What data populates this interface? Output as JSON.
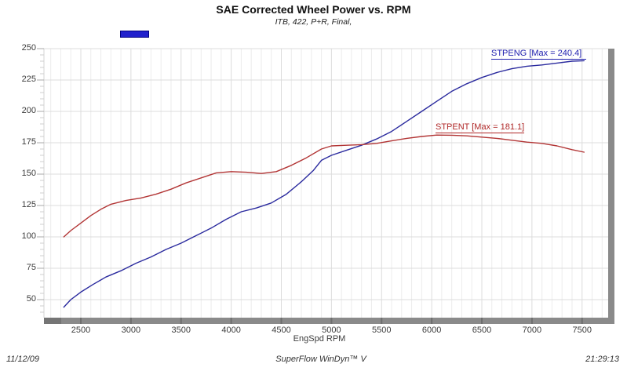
{
  "title": "SAE Corrected Wheel Power vs. RPM",
  "subtitle": "ITB, 422, P+R, Final,",
  "footer": {
    "date": "11/12/09",
    "app": "SuperFlow WinDyn™ V",
    "time": "21:29:13"
  },
  "colors": {
    "power_line": "#2a2a9e",
    "torque_line": "#b23535",
    "power_label": "#2222b0",
    "torque_label": "#b02828",
    "legend_fill": "#2121cc",
    "legend_border": "#000080",
    "axis_bar": "#8a8a8a",
    "axis_bar_dark": "#6e6e6e",
    "grid_major": "#dcdcdc",
    "grid_minor": "#ececec",
    "tick_text": "#3c3c3c"
  },
  "chart_data": {
    "type": "line",
    "title": "SAE Corrected Wheel Power vs. RPM",
    "subtitle": "ITB, 422, P+R, Final,",
    "xlabel": "EngSpd RPM",
    "ylabel": "",
    "xlim": [
      2130,
      7790
    ],
    "ylim": [
      35,
      250
    ],
    "grid": true,
    "legend_position": "inline-flags",
    "x_ticks": [
      2500,
      3000,
      3500,
      4000,
      4500,
      5000,
      5500,
      6000,
      6500,
      7000,
      7500
    ],
    "y_ticks": [
      50,
      75,
      100,
      125,
      150,
      175,
      200,
      225,
      250
    ],
    "series": [
      {
        "name": "STPENG",
        "label": "STPENG [Max = 240.4]",
        "max": 240.4,
        "units": "power",
        "points": [
          [
            2330,
            44
          ],
          [
            2400,
            50
          ],
          [
            2500,
            56
          ],
          [
            2620,
            62
          ],
          [
            2750,
            68
          ],
          [
            2900,
            73
          ],
          [
            3050,
            79
          ],
          [
            3200,
            84
          ],
          [
            3350,
            90
          ],
          [
            3500,
            95
          ],
          [
            3650,
            101
          ],
          [
            3800,
            107
          ],
          [
            3950,
            114
          ],
          [
            4100,
            120
          ],
          [
            4250,
            123
          ],
          [
            4400,
            127
          ],
          [
            4550,
            134
          ],
          [
            4700,
            144
          ],
          [
            4820,
            153
          ],
          [
            4900,
            161
          ],
          [
            5000,
            165
          ],
          [
            5150,
            169
          ],
          [
            5300,
            173
          ],
          [
            5450,
            178
          ],
          [
            5600,
            184
          ],
          [
            5750,
            192
          ],
          [
            5900,
            200
          ],
          [
            6050,
            208
          ],
          [
            6200,
            216
          ],
          [
            6350,
            222
          ],
          [
            6500,
            227
          ],
          [
            6650,
            231
          ],
          [
            6800,
            234
          ],
          [
            6950,
            236
          ],
          [
            7100,
            237
          ],
          [
            7250,
            238.5
          ],
          [
            7400,
            240
          ],
          [
            7520,
            240.4
          ]
        ]
      },
      {
        "name": "STPENT",
        "label": "STPENT [Max = 181.1]",
        "max": 181.1,
        "units": "torque",
        "points": [
          [
            2330,
            100
          ],
          [
            2400,
            105
          ],
          [
            2500,
            111
          ],
          [
            2600,
            117
          ],
          [
            2700,
            122
          ],
          [
            2800,
            126
          ],
          [
            2950,
            129
          ],
          [
            3100,
            131
          ],
          [
            3250,
            134
          ],
          [
            3400,
            138
          ],
          [
            3550,
            143
          ],
          [
            3700,
            147
          ],
          [
            3850,
            151
          ],
          [
            4000,
            152
          ],
          [
            4150,
            151.5
          ],
          [
            4300,
            150.5
          ],
          [
            4450,
            152
          ],
          [
            4600,
            157
          ],
          [
            4750,
            163
          ],
          [
            4900,
            170
          ],
          [
            5000,
            172.5
          ],
          [
            5150,
            173
          ],
          [
            5300,
            173.5
          ],
          [
            5450,
            174.5
          ],
          [
            5600,
            176.5
          ],
          [
            5750,
            178.5
          ],
          [
            5900,
            180
          ],
          [
            6050,
            181.1
          ],
          [
            6200,
            181
          ],
          [
            6350,
            180.5
          ],
          [
            6500,
            179.5
          ],
          [
            6650,
            178.5
          ],
          [
            6800,
            177
          ],
          [
            6950,
            175.5
          ],
          [
            7100,
            174.5
          ],
          [
            7250,
            172.5
          ],
          [
            7400,
            169.5
          ],
          [
            7520,
            167.5
          ]
        ]
      }
    ]
  }
}
